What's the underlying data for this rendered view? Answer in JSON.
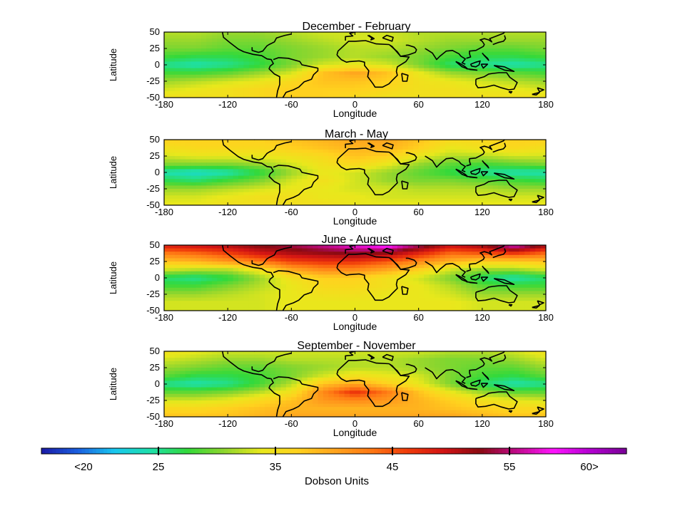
{
  "chart_data": [
    {
      "type": "heatmap",
      "title": "December - February",
      "xlabel": "Longitude",
      "ylabel": "Latitude",
      "xlim": [
        -180,
        180
      ],
      "ylim": [
        -50,
        50
      ],
      "xticks": [
        "-180",
        "-120",
        "-60",
        "0",
        "60",
        "120",
        "180"
      ],
      "yticks": [
        "50",
        "25",
        "0",
        "-25",
        "-50"
      ],
      "x": [
        -180,
        -150,
        -120,
        -90,
        -60,
        -30,
        0,
        30,
        60,
        90,
        120,
        150,
        180
      ],
      "y": [
        50,
        37.5,
        25,
        12.5,
        0,
        -12.5,
        -25,
        -37.5,
        -50
      ],
      "z": [
        [
          32,
          32,
          31,
          31,
          32,
          33,
          33,
          33,
          32,
          32,
          32,
          32,
          32
        ],
        [
          31,
          31,
          30,
          30,
          31,
          32,
          33,
          33,
          32,
          31,
          31,
          31,
          31
        ],
        [
          30,
          30,
          29,
          29,
          30,
          31,
          32,
          32,
          31,
          30,
          29,
          29,
          30
        ],
        [
          28,
          27,
          27,
          28,
          30,
          31,
          32,
          31,
          30,
          28,
          27,
          27,
          28
        ],
        [
          25,
          24,
          25,
          27,
          30,
          33,
          34,
          33,
          30,
          26,
          25,
          24,
          25
        ],
        [
          28,
          28,
          29,
          31,
          33,
          38,
          40,
          38,
          34,
          31,
          30,
          29,
          28
        ],
        [
          31,
          32,
          33,
          34,
          36,
          38,
          38,
          37,
          35,
          34,
          33,
          32,
          31
        ],
        [
          33,
          34,
          35,
          36,
          37,
          37,
          37,
          36,
          35,
          35,
          34,
          34,
          33
        ],
        [
          35,
          35,
          35,
          36,
          37,
          37,
          36,
          35,
          35,
          35,
          35,
          35,
          35
        ]
      ]
    },
    {
      "type": "heatmap",
      "title": "March - May",
      "xlabel": "Longitude",
      "ylabel": "Latitude",
      "xlim": [
        -180,
        180
      ],
      "ylim": [
        -50,
        50
      ],
      "xticks": [
        "-180",
        "-120",
        "-60",
        "0",
        "60",
        "120",
        "180"
      ],
      "yticks": [
        "50",
        "25",
        "0",
        "-25",
        "-50"
      ],
      "x": [
        -180,
        -150,
        -120,
        -90,
        -60,
        -30,
        0,
        30,
        60,
        90,
        120,
        150,
        180
      ],
      "y": [
        50,
        37.5,
        25,
        12.5,
        0,
        -12.5,
        -25,
        -37.5,
        -50
      ],
      "z": [
        [
          37,
          37,
          37,
          37,
          38,
          39,
          40,
          40,
          38,
          36,
          36,
          37,
          37
        ],
        [
          35,
          36,
          36,
          36,
          37,
          38,
          39,
          39,
          37,
          34,
          35,
          36,
          35
        ],
        [
          33,
          34,
          34,
          34,
          35,
          36,
          38,
          37,
          34,
          32,
          32,
          33,
          33
        ],
        [
          30,
          30,
          30,
          31,
          33,
          35,
          36,
          34,
          31,
          29,
          28,
          29,
          30
        ],
        [
          24,
          23,
          24,
          27,
          31,
          34,
          33,
          31,
          29,
          27,
          25,
          24,
          24
        ],
        [
          27,
          26,
          28,
          30,
          33,
          35,
          33,
          31,
          30,
          30,
          29,
          28,
          27
        ],
        [
          31,
          31,
          32,
          33,
          34,
          34,
          33,
          33,
          32,
          32,
          32,
          31,
          31
        ],
        [
          33,
          33,
          34,
          35,
          35,
          34,
          34,
          33,
          33,
          33,
          33,
          33,
          33
        ],
        [
          34,
          34,
          35,
          35,
          35,
          35,
          34,
          34,
          34,
          34,
          34,
          34,
          34
        ]
      ]
    },
    {
      "type": "heatmap",
      "title": "June - August",
      "xlabel": "Longitude",
      "ylabel": "Latitude",
      "xlim": [
        -180,
        180
      ],
      "ylim": [
        -50,
        50
      ],
      "xticks": [
        "-180",
        "-120",
        "-60",
        "0",
        "60",
        "120",
        "180"
      ],
      "yticks": [
        "50",
        "25",
        "0",
        "-25",
        "-50"
      ],
      "x": [
        -180,
        -150,
        -120,
        -90,
        -60,
        -30,
        0,
        30,
        60,
        90,
        120,
        150,
        180
      ],
      "y": [
        50,
        37.5,
        25,
        12.5,
        0,
        -12.5,
        -25,
        -37.5,
        -50
      ],
      "z": [
        [
          49,
          50,
          51,
          53,
          54,
          56,
          58,
          60,
          55,
          50,
          52,
          58,
          52
        ],
        [
          43,
          44,
          46,
          49,
          51,
          52,
          53,
          52,
          48,
          44,
          45,
          47,
          44
        ],
        [
          38,
          39,
          41,
          43,
          46,
          47,
          47,
          45,
          42,
          39,
          37,
          37,
          38
        ],
        [
          33,
          32,
          32,
          35,
          40,
          42,
          42,
          40,
          37,
          33,
          31,
          31,
          33
        ],
        [
          26,
          25,
          27,
          31,
          35,
          37,
          37,
          35,
          33,
          30,
          26,
          24,
          26
        ],
        [
          28,
          28,
          30,
          32,
          34,
          36,
          36,
          35,
          34,
          32,
          29,
          28,
          28
        ],
        [
          31,
          31,
          32,
          33,
          34,
          35,
          35,
          34,
          34,
          33,
          31,
          31,
          31
        ],
        [
          33,
          33,
          33,
          33,
          34,
          34,
          34,
          34,
          34,
          34,
          33,
          33,
          33
        ],
        [
          33,
          33,
          33,
          33,
          34,
          34,
          34,
          34,
          34,
          34,
          33,
          33,
          33
        ]
      ]
    },
    {
      "type": "heatmap",
      "title": "September - November",
      "xlabel": "Longitude",
      "ylabel": "Latitude",
      "xlim": [
        -180,
        180
      ],
      "ylim": [
        -50,
        50
      ],
      "xticks": [
        "-180",
        "-120",
        "-60",
        "0",
        "60",
        "120",
        "180"
      ],
      "yticks": [
        "50",
        "25",
        "0",
        "-25",
        "-50"
      ],
      "x": [
        -180,
        -150,
        -120,
        -90,
        -60,
        -30,
        0,
        30,
        60,
        90,
        120,
        150,
        180
      ],
      "y": [
        50,
        37.5,
        25,
        12.5,
        0,
        -12.5,
        -25,
        -37.5,
        -50
      ],
      "z": [
        [
          35,
          34,
          33,
          33,
          33,
          33,
          33,
          33,
          33,
          32,
          32,
          33,
          35
        ],
        [
          33,
          32,
          31,
          31,
          32,
          32,
          32,
          32,
          31,
          30,
          30,
          31,
          33
        ],
        [
          31,
          30,
          29,
          29,
          30,
          31,
          32,
          32,
          31,
          30,
          29,
          29,
          31
        ],
        [
          29,
          27,
          27,
          28,
          30,
          33,
          35,
          34,
          33,
          30,
          28,
          27,
          29
        ],
        [
          25,
          24,
          25,
          28,
          32,
          38,
          40,
          37,
          34,
          30,
          26,
          24,
          25
        ],
        [
          29,
          29,
          30,
          32,
          35,
          42,
          47,
          43,
          38,
          34,
          31,
          29,
          29
        ],
        [
          33,
          33,
          34,
          36,
          38,
          41,
          42,
          41,
          39,
          37,
          35,
          34,
          33
        ],
        [
          36,
          36,
          37,
          38,
          39,
          39,
          39,
          39,
          39,
          38,
          37,
          36,
          36
        ],
        [
          38,
          38,
          38,
          39,
          40,
          40,
          40,
          40,
          40,
          40,
          39,
          38,
          38
        ]
      ]
    }
  ],
  "colorbar": {
    "label": "Dobson Units",
    "tick_labels": [
      "<20",
      "25",
      "35",
      "45",
      "55",
      "60>"
    ],
    "tick_values": [
      20,
      25,
      35,
      45,
      55,
      60
    ],
    "range": [
      15,
      65
    ],
    "colors": [
      "#1a1aa6",
      "#1a5fe0",
      "#19c8f0",
      "#1ee0a8",
      "#33d93a",
      "#8fd62e",
      "#e8e81c",
      "#ffd21e",
      "#ffa51e",
      "#ff7a14",
      "#f03c0a",
      "#d21414",
      "#8a0a12",
      "#c00a8a",
      "#ff14ff",
      "#b400d2",
      "#780096"
    ]
  }
}
